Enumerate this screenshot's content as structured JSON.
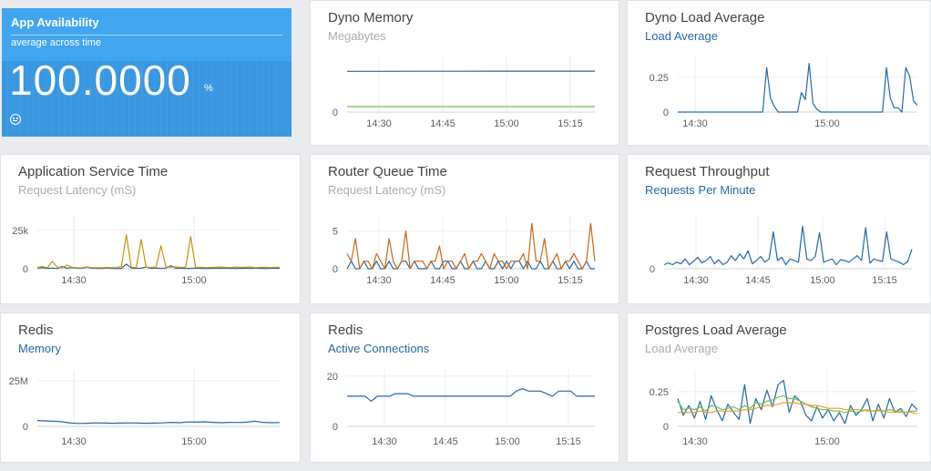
{
  "availability": {
    "title": "App Availability",
    "subtitle": "average across time",
    "value": "100.0000",
    "unit": "%",
    "icon": "neutral-face-icon",
    "color": "#42a5f0"
  },
  "colors": {
    "blue": "#2469a6",
    "gold": "#c8930e",
    "orange": "#c8661a",
    "green": "#6fbf4a",
    "grid": "#eceef0"
  },
  "panels": [
    {
      "title": "Dyno Memory",
      "subtitle": "Megabytes",
      "subtitle_style": "gray",
      "chart_data": {
        "type": "line",
        "ylim": [
          0,
          700
        ],
        "y_ticks": [
          {
            "v": 0,
            "label": "0"
          }
        ],
        "x_ticks": [
          "14:30",
          "14:45",
          "15:00",
          "15:15"
        ],
        "series": [
          {
            "color": "#2469a6",
            "values": [
              540,
              540,
              541,
              541,
              542,
              542,
              542,
              542
            ]
          },
          {
            "color": "#6fbf4a",
            "values": [
              72,
              72,
              72,
              72,
              72,
              72,
              72,
              72
            ]
          }
        ]
      }
    },
    {
      "title": "Dyno Load Average",
      "subtitle": "Load Average",
      "subtitle_style": "blue",
      "chart_data": {
        "type": "line",
        "ylim": [
          0,
          0.38
        ],
        "y_ticks": [
          {
            "v": 0,
            "label": "0"
          },
          {
            "v": 0.25,
            "label": "0.25"
          }
        ],
        "x_ticks": [
          "14:30",
          "15:00"
        ],
        "series": [
          {
            "color": "#2469a6",
            "values": [
              0,
              0,
              0,
              0,
              0,
              0,
              0,
              0,
              0,
              0,
              0,
              0,
              0,
              0,
              0,
              0,
              0,
              0,
              0,
              0,
              0,
              0,
              0,
              0.32,
              0.1,
              0.04,
              0,
              0,
              0,
              0,
              0,
              0,
              0.14,
              0.09,
              0.35,
              0.06,
              0.02,
              0,
              0,
              0,
              0,
              0,
              0,
              0,
              0,
              0,
              0,
              0,
              0,
              0,
              0,
              0,
              0,
              0,
              0.32,
              0.1,
              0.03,
              0.03,
              0,
              0.32,
              0.26,
              0.08,
              0.05
            ]
          }
        ]
      }
    },
    {
      "title": "Application Service Time",
      "subtitle": "Request Latency (mS)",
      "subtitle_style": "gray",
      "chart_data": {
        "type": "line",
        "ylim": [
          0,
          32000
        ],
        "y_ticks": [
          {
            "v": 0,
            "label": "0"
          },
          {
            "v": 25000,
            "label": "25k"
          }
        ],
        "x_ticks": [
          "14:30",
          "15:00"
        ],
        "series": [
          {
            "color": "#2469a6",
            "values": [
              500,
              700,
              300,
              400,
              200,
              1500,
              300,
              800,
              500,
              300,
              1000,
              400,
              300,
              200,
              600,
              300,
              200,
              300,
              3000,
              500,
              300,
              400,
              1200,
              300,
              400,
              300,
              500,
              2000,
              300,
              400,
              200,
              300,
              400,
              300,
              200,
              300,
              500,
              300,
              400,
              300,
              200,
              300,
              400,
              300,
              500,
              300,
              200,
              300,
              400,
              300
            ]
          },
          {
            "color": "#c8930e",
            "values": [
              800,
              1500,
              600,
              4800,
              1200,
              600,
              2400,
              1000,
              700,
              600,
              1200,
              800,
              700,
              600,
              900,
              700,
              800,
              1600,
              22000,
              1000,
              800,
              19000,
              1000,
              900,
              1200,
              15000,
              1100,
              1000,
              1200,
              900,
              1000,
              21000,
              1000,
              900,
              800,
              900,
              1000,
              1200,
              900,
              800,
              1100,
              900,
              1000,
              1200,
              800,
              900,
              1000,
              800,
              900,
              1000
            ]
          }
        ]
      }
    },
    {
      "title": "Router Queue Time",
      "subtitle": "Request Latency (mS)",
      "subtitle_style": "gray",
      "chart_data": {
        "type": "line",
        "ylim": [
          0,
          6.5
        ],
        "y_ticks": [
          {
            "v": 0,
            "label": "0"
          },
          {
            "v": 5,
            "label": "5"
          }
        ],
        "x_ticks": [
          "14:30",
          "14:45",
          "15:00",
          "15:15"
        ],
        "series": [
          {
            "color": "#2469a6",
            "values": [
              0,
              1,
              0,
              0,
              1,
              0,
              0,
              1,
              0,
              0,
              1,
              0,
              0,
              1,
              1,
              0,
              1,
              0,
              0,
              0,
              1,
              0,
              0,
              1,
              1,
              0,
              0,
              1,
              0,
              0,
              1,
              0,
              0,
              1,
              0,
              0,
              1,
              0,
              1,
              0,
              1,
              1,
              0,
              1,
              0,
              0,
              1,
              0,
              0,
              1,
              0,
              0,
              1,
              0,
              1,
              0,
              0,
              1,
              0,
              0
            ]
          },
          {
            "color": "#c8661a",
            "values": [
              2,
              1,
              4,
              0,
              1,
              1,
              0,
              2,
              1,
              0,
              4,
              1,
              0,
              1,
              5,
              0,
              1,
              1,
              1,
              0,
              1,
              1,
              3,
              0,
              1,
              1,
              0,
              1,
              2,
              0,
              1,
              1,
              2,
              1,
              0,
              2,
              1,
              1,
              0,
              1,
              1,
              1,
              2,
              0,
              6,
              1,
              1,
              4,
              0,
              1,
              2,
              0,
              1,
              1,
              2,
              1,
              0,
              1,
              6,
              1
            ]
          }
        ]
      }
    },
    {
      "title": "Request Throughput",
      "subtitle": "Requests Per Minute",
      "subtitle_style": "blue",
      "chart_data": {
        "type": "line",
        "ylim": [
          0,
          60
        ],
        "y_ticks": [
          {
            "v": 0,
            "label": "0"
          }
        ],
        "x_ticks": [
          "14:30",
          "14:45",
          "15:00",
          "15:15"
        ],
        "series": [
          {
            "color": "#2469a6",
            "values": [
              5,
              7,
              5,
              8,
              6,
              12,
              5,
              9,
              14,
              7,
              10,
              15,
              6,
              11,
              5,
              8,
              16,
              10,
              18,
              12,
              22,
              6,
              10,
              15,
              8,
              12,
              45,
              10,
              14,
              5,
              12,
              10,
              8,
              52,
              12,
              10,
              15,
              44,
              8,
              10,
              12,
              5,
              11,
              10,
              8,
              12,
              16,
              10,
              50,
              7,
              12,
              10,
              9,
              45,
              12,
              10,
              8,
              5,
              9,
              24
            ]
          }
        ]
      }
    },
    {
      "title": "Redis",
      "subtitle": "Memory",
      "subtitle_style": "blue",
      "chart_data": {
        "type": "line",
        "ylim": [
          0,
          29000000
        ],
        "y_ticks": [
          {
            "v": 0,
            "label": "0"
          },
          {
            "v": 25000000,
            "label": "25M"
          }
        ],
        "x_ticks": [
          "14:30",
          "15:00"
        ],
        "series": [
          {
            "color": "#2469a6",
            "values": [
              3200000,
              3000000,
              2800000,
              2500000,
              1800000,
              1600000,
              1700000,
              1900000,
              1800000,
              1700000,
              1800000,
              1900000,
              1800000,
              1700000,
              1800000,
              1900000,
              2200000,
              2000000,
              2400000,
              2300000,
              2500000,
              2200000,
              2000000,
              2200000,
              2100000,
              2300000,
              2800000,
              2200000,
              2000000,
              2100000
            ]
          }
        ]
      }
    },
    {
      "title": "Redis",
      "subtitle": "Active Connections",
      "subtitle_style": "blue",
      "chart_data": {
        "type": "line",
        "ylim": [
          0,
          21
        ],
        "y_ticks": [
          {
            "v": 0,
            "label": "0"
          },
          {
            "v": 20,
            "label": "20"
          }
        ],
        "x_ticks": [
          "14:30",
          "14:45",
          "15:00",
          "15:15"
        ],
        "series": [
          {
            "color": "#2469a6",
            "values": [
              12,
              12,
              12,
              12,
              10,
              12,
              12,
              12,
              13,
              13,
              13,
              12,
              12,
              12,
              12,
              12,
              12,
              12,
              12,
              12,
              12,
              12,
              12,
              12,
              12,
              12,
              12,
              12,
              14,
              15,
              14,
              14,
              14,
              13,
              12,
              14,
              14,
              14,
              12,
              12,
              12,
              12
            ]
          }
        ]
      }
    },
    {
      "title": "Postgres Load Average",
      "subtitle": "Load Average",
      "subtitle_style": "gray",
      "chart_data": {
        "type": "line",
        "ylim": [
          0,
          0.38
        ],
        "y_ticks": [
          {
            "v": 0,
            "label": "0"
          },
          {
            "v": 0.25,
            "label": "0.25"
          }
        ],
        "x_ticks": [
          "14:30",
          "15:00"
        ],
        "series": [
          {
            "color": "#2469a6",
            "values": [
              0.2,
              0.08,
              0.15,
              0.06,
              0.18,
              0.05,
              0.22,
              0.12,
              0.04,
              0.16,
              0.1,
              0.05,
              0.3,
              0.02,
              0.2,
              0.12,
              0.26,
              0.14,
              0.3,
              0.33,
              0.1,
              0.22,
              0.18,
              0.08,
              0.04,
              0.14,
              0.06,
              0.12,
              0.04,
              0.1,
              0.02,
              0.15,
              0.08,
              0.12,
              0.2,
              0.04,
              0.16,
              0.06,
              0.2,
              0.1,
              0.13,
              0.07,
              0.16,
              0.12
            ]
          },
          {
            "color": "#6fbf4a",
            "values": [
              0.18,
              0.12,
              0.13,
              0.12,
              0.14,
              0.11,
              0.15,
              0.14,
              0.12,
              0.13,
              0.14,
              0.12,
              0.15,
              0.13,
              0.17,
              0.16,
              0.18,
              0.19,
              0.21,
              0.22,
              0.2,
              0.2,
              0.18,
              0.16,
              0.14,
              0.13,
              0.12,
              0.12,
              0.11,
              0.11,
              0.1,
              0.11,
              0.1,
              0.11,
              0.12,
              0.11,
              0.12,
              0.11,
              0.12,
              0.11,
              0.11,
              0.1,
              0.11,
              0.11
            ]
          },
          {
            "color": "#e89a2a",
            "values": [
              0.1,
              0.1,
              0.1,
              0.1,
              0.11,
              0.1,
              0.1,
              0.11,
              0.11,
              0.11,
              0.11,
              0.11,
              0.12,
              0.12,
              0.13,
              0.14,
              0.15,
              0.15,
              0.16,
              0.17,
              0.17,
              0.17,
              0.16,
              0.16,
              0.15,
              0.15,
              0.14,
              0.13,
              0.13,
              0.13,
              0.12,
              0.12,
              0.12,
              0.12,
              0.11,
              0.11,
              0.11,
              0.11,
              0.1,
              0.1,
              0.1,
              0.1,
              0.1,
              0.09
            ]
          }
        ]
      }
    }
  ]
}
